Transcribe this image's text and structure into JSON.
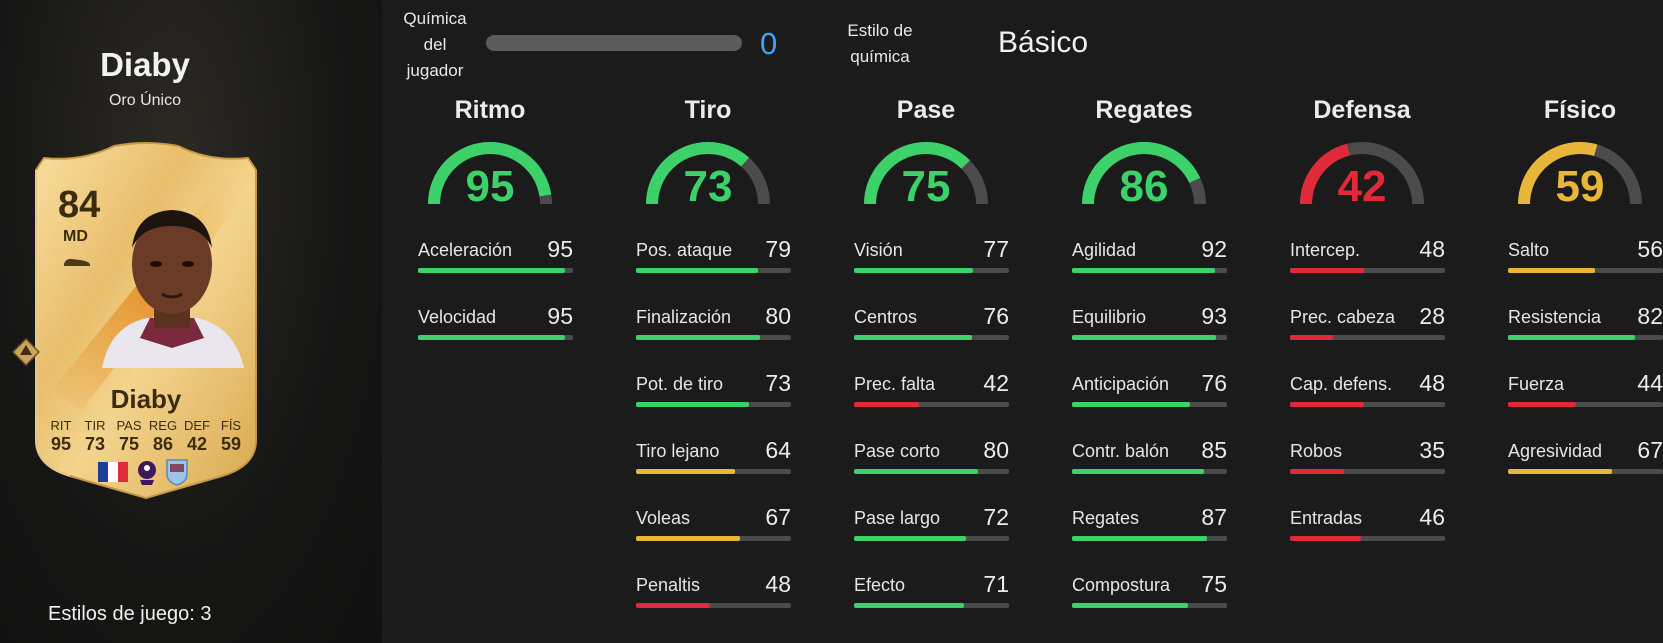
{
  "player": {
    "name": "Diaby",
    "card_type": "Oro Único",
    "rating": "84",
    "position": "MD",
    "card_name": "Diaby",
    "card_stat_labels": [
      "RIT",
      "TIR",
      "PAS",
      "REG",
      "DEF",
      "FÍS"
    ],
    "card_stat_values": [
      "95",
      "73",
      "75",
      "86",
      "42",
      "59"
    ],
    "playstyles_label": "Estilos de juego: 3"
  },
  "chemistry": {
    "label_lines": [
      "Química",
      "del",
      "jugador"
    ],
    "value": "0",
    "progress": 0,
    "style_label_lines": [
      "Estilo de",
      "química"
    ],
    "style_value": "Básico"
  },
  "colors": {
    "green": "#3dd16a",
    "yellow": "#e8b73a",
    "red": "#e02a3a",
    "track": "#4a4b4a",
    "chem_blue": "#3fa3ff"
  },
  "categories": [
    {
      "title": "Ritmo",
      "value": 95,
      "stats": [
        {
          "label": "Aceleración",
          "value": 95
        },
        {
          "label": "Velocidad",
          "value": 95
        }
      ]
    },
    {
      "title": "Tiro",
      "value": 73,
      "stats": [
        {
          "label": "Pos. ataque",
          "value": 79
        },
        {
          "label": "Finalización",
          "value": 80
        },
        {
          "label": "Pot. de tiro",
          "value": 73
        },
        {
          "label": "Tiro lejano",
          "value": 64
        },
        {
          "label": "Voleas",
          "value": 67
        },
        {
          "label": "Penaltis",
          "value": 48
        }
      ]
    },
    {
      "title": "Pase",
      "value": 75,
      "stats": [
        {
          "label": "Visión",
          "value": 77
        },
        {
          "label": "Centros",
          "value": 76
        },
        {
          "label": "Prec. falta",
          "value": 42
        },
        {
          "label": "Pase corto",
          "value": 80
        },
        {
          "label": "Pase largo",
          "value": 72
        },
        {
          "label": "Efecto",
          "value": 71
        }
      ]
    },
    {
      "title": "Regates",
      "value": 86,
      "stats": [
        {
          "label": "Agilidad",
          "value": 92
        },
        {
          "label": "Equilibrio",
          "value": 93
        },
        {
          "label": "Anticipación",
          "value": 76
        },
        {
          "label": "Contr. balón",
          "value": 85
        },
        {
          "label": "Regates",
          "value": 87
        },
        {
          "label": "Compostura",
          "value": 75
        }
      ]
    },
    {
      "title": "Defensa",
      "value": 42,
      "stats": [
        {
          "label": "Intercep.",
          "value": 48
        },
        {
          "label": "Prec. cabeza",
          "value": 28
        },
        {
          "label": "Cap. defens.",
          "value": 48
        },
        {
          "label": "Robos",
          "value": 35
        },
        {
          "label": "Entradas",
          "value": 46
        }
      ]
    },
    {
      "title": "Físico",
      "value": 59,
      "stats": [
        {
          "label": "Salto",
          "value": 56
        },
        {
          "label": "Resistencia",
          "value": 82
        },
        {
          "label": "Fuerza",
          "value": 44
        },
        {
          "label": "Agresividad",
          "value": 67
        }
      ]
    }
  ]
}
